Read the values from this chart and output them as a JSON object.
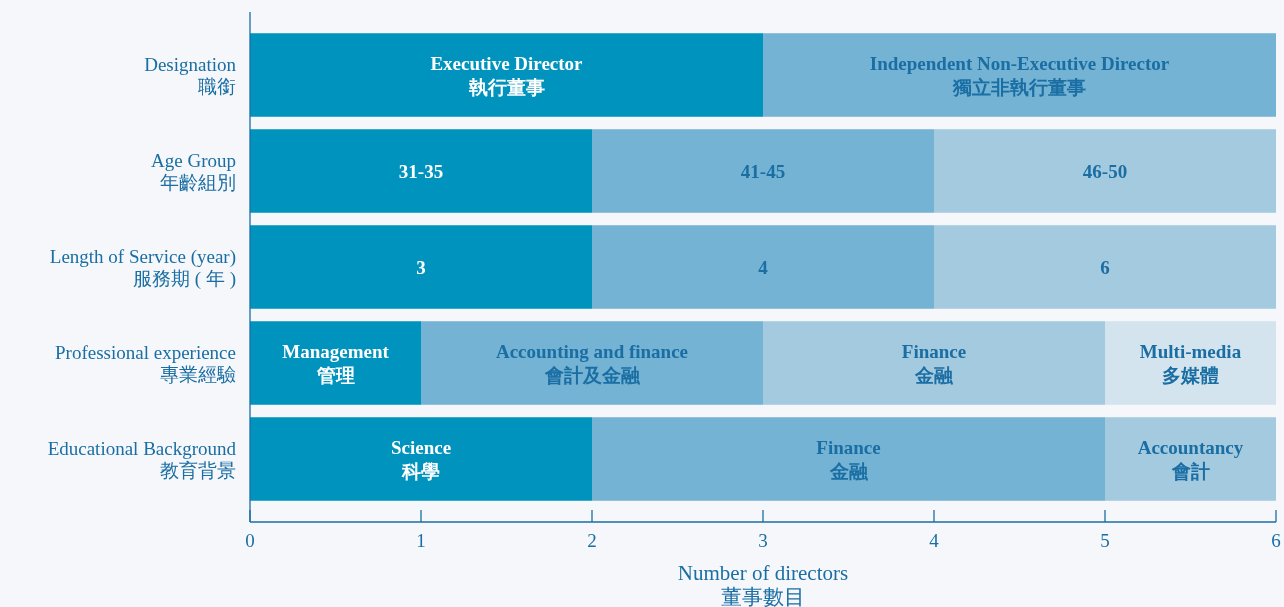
{
  "chart_data": {
    "type": "bar",
    "orientation": "horizontal",
    "stacked": true,
    "categories": [
      "Designation\n職銜",
      "Age Group\n年齡組別",
      "Length of Service (year)\n服務期 ( 年 )",
      "Professional experience\n專業經驗",
      "Educational Background\n教育背景"
    ],
    "annotations": [
      {
        "text": "3",
        "x": 1,
        "y": "Length of Service (year)\n服務期 ( 年 )"
      },
      {
        "text": "4",
        "x": 3,
        "y": "Length of Service (year)\n服務期 ( 年 )"
      },
      {
        "text": "6",
        "x": 5,
        "y": "Length of Service (year)\n服務期 ( 年 )"
      }
    ],
    "xlabel": "Number of directors\n董事數目",
    "xlim": [
      0,
      6
    ],
    "xticks": [
      0,
      1,
      2,
      3,
      4,
      5,
      6
    ],
    "series": [
      {
        "color": "#0093bd",
        "values": [
          3,
          2,
          2,
          1,
          2
        ],
        "value_labels": [
          "Executive Director\n執行董事",
          "31-35",
          null,
          "Management\n管理",
          "Science\n科學"
        ]
      },
      {
        "color": "#74b3d3",
        "values": [
          3,
          2,
          2,
          2,
          3
        ],
        "value_labels": [
          "Independent Non-Executive Director\n獨立非執行董事",
          "41-45",
          null,
          "Accounting and finance\n會計及金融",
          "Finance\n金融"
        ]
      },
      {
        "color": "#a4cadf",
        "values": [
          null,
          2,
          2,
          2,
          1
        ],
        "value_labels": [
          null,
          "46-50",
          null,
          "Finance\n金融",
          "Accountancy\n會計"
        ]
      },
      {
        "color": "#d3e4ee",
        "values": [
          null,
          null,
          null,
          1,
          null
        ],
        "value_labels": [
          null,
          null,
          null,
          "Multi-media\n多媒體",
          null
        ]
      }
    ]
  }
}
